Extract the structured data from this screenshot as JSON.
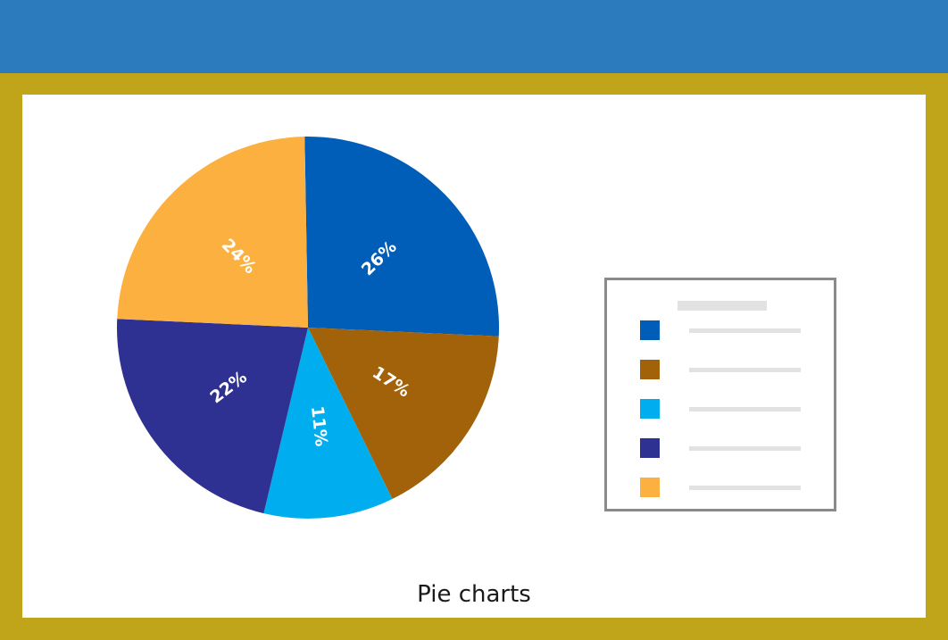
{
  "caption": "Pie charts",
  "colors": {
    "banner": "#2c7bbd",
    "frame": "#c0a41a",
    "panel": "#ffffff"
  },
  "chart_data": {
    "type": "pie",
    "slices": [
      {
        "label": "26%",
        "value": 26,
        "color": "#005eb8"
      },
      {
        "label": "17%",
        "value": 17,
        "color": "#a2620a"
      },
      {
        "label": "11%",
        "value": 11,
        "color": "#00aeef"
      },
      {
        "label": "22%",
        "value": 22,
        "color": "#2e3192"
      },
      {
        "label": "24%",
        "value": 24,
        "color": "#fbb040"
      }
    ],
    "legend_placement": "right"
  }
}
